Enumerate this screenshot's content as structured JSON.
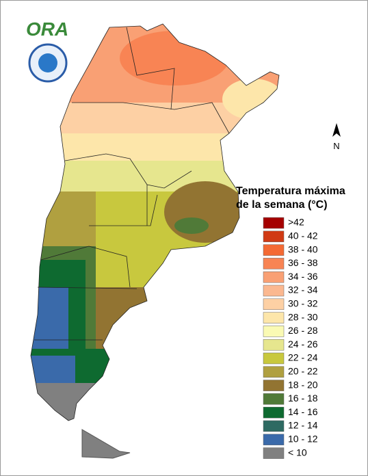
{
  "logo": {
    "text": "ORA"
  },
  "north_arrow": {
    "label": "N"
  },
  "legend": {
    "title": [
      "Temperatura máxima",
      "de la semana (°C)"
    ],
    "items": [
      {
        "label": ">42",
        "color": "#a50000"
      },
      {
        "label": "40 - 42",
        "color": "#d03a14"
      },
      {
        "label": "38 - 40",
        "color": "#f46a34"
      },
      {
        "label": "36 - 38",
        "color": "#f88454"
      },
      {
        "label": "34 - 36",
        "color": "#f9a074"
      },
      {
        "label": "32 - 34",
        "color": "#fbb890"
      },
      {
        "label": "30 - 32",
        "color": "#fdd0a4"
      },
      {
        "label": "28 - 30",
        "color": "#fde6aa"
      },
      {
        "label": "26 - 28",
        "color": "#fafab4"
      },
      {
        "label": "24 - 26",
        "color": "#e6e68e"
      },
      {
        "label": "22 - 24",
        "color": "#c8c83e"
      },
      {
        "label": "20 - 22",
        "color": "#b0a040"
      },
      {
        "label": "18 - 20",
        "color": "#927432"
      },
      {
        "label": "16 - 18",
        "color": "#507a38"
      },
      {
        "label": "14 - 16",
        "color": "#0e6a30"
      },
      {
        "label": "12 - 14",
        "color": "#2e6a62"
      },
      {
        "label": "10 - 12",
        "color": "#3a6aaa"
      },
      {
        "label": "< 10",
        "color": "#808080"
      }
    ]
  }
}
